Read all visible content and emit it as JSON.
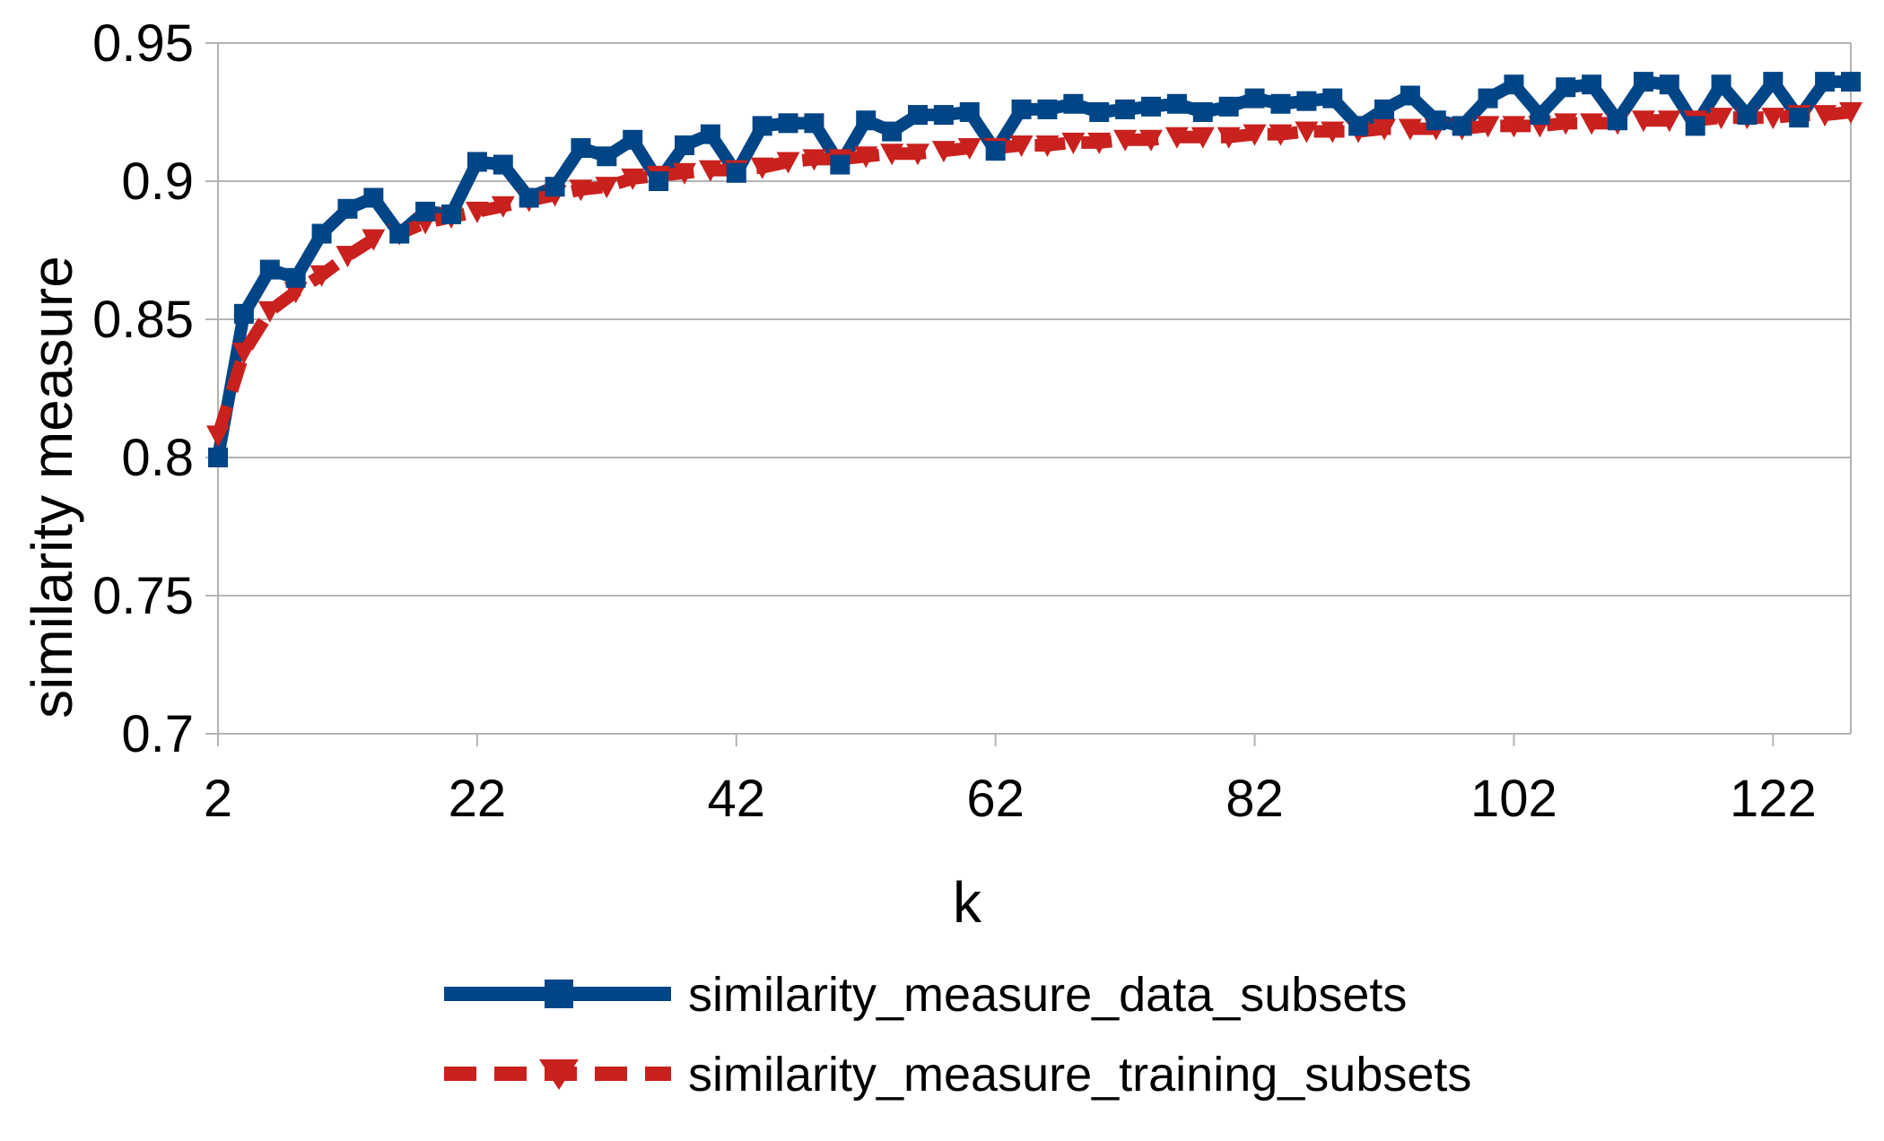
{
  "chart_data": {
    "type": "line",
    "xlabel": "k",
    "ylabel": "similarity measure",
    "xlim": [
      2,
      128
    ],
    "ylim": [
      0.7,
      0.95
    ],
    "x_ticks": [
      "2",
      "22",
      "42",
      "62",
      "82",
      "102",
      "122"
    ],
    "y_ticks": [
      "0.7",
      "0.75",
      "0.8",
      "0.85",
      "0.9",
      "0.95"
    ],
    "grid": "horizontal",
    "legend_position": "bottom",
    "x": [
      2,
      4,
      6,
      8,
      10,
      12,
      14,
      16,
      18,
      20,
      22,
      24,
      26,
      28,
      30,
      32,
      34,
      36,
      38,
      40,
      42,
      44,
      46,
      48,
      50,
      52,
      54,
      56,
      58,
      60,
      62,
      64,
      66,
      68,
      70,
      72,
      74,
      76,
      78,
      80,
      82,
      84,
      86,
      88,
      90,
      92,
      94,
      96,
      98,
      100,
      102,
      104,
      106,
      108,
      110,
      112,
      114,
      116,
      118,
      120,
      122,
      124,
      126,
      128
    ],
    "series": [
      {
        "name": "similarity_measure_data_subsets",
        "color": "#004586",
        "line_style": "solid",
        "marker": "square",
        "values": [
          0.8,
          0.852,
          0.868,
          0.865,
          0.881,
          0.89,
          0.894,
          0.881,
          0.889,
          0.888,
          0.907,
          0.906,
          0.894,
          0.898,
          0.912,
          0.909,
          0.915,
          0.9,
          0.913,
          0.917,
          0.903,
          0.92,
          0.921,
          0.921,
          0.906,
          0.922,
          0.918,
          0.924,
          0.924,
          0.925,
          0.911,
          0.926,
          0.926,
          0.928,
          0.925,
          0.926,
          0.927,
          0.928,
          0.925,
          0.927,
          0.93,
          0.928,
          0.929,
          0.93,
          0.92,
          0.926,
          0.931,
          0.922,
          0.92,
          0.93,
          0.935,
          0.924,
          0.934,
          0.935,
          0.922,
          0.936,
          0.935,
          0.92,
          0.935,
          0.924,
          0.936,
          0.923,
          0.936,
          0.936
        ]
      },
      {
        "name": "similarity_measure_training_subsets",
        "color": "#c9211e",
        "line_style": "dashed",
        "marker": "triangle-down",
        "values": [
          0.808,
          0.838,
          0.853,
          0.86,
          0.866,
          0.873,
          0.879,
          0.881,
          0.885,
          0.887,
          0.889,
          0.891,
          0.893,
          0.895,
          0.897,
          0.898,
          0.901,
          0.902,
          0.903,
          0.904,
          0.904,
          0.905,
          0.907,
          0.908,
          0.908,
          0.909,
          0.91,
          0.91,
          0.911,
          0.912,
          0.912,
          0.913,
          0.913,
          0.914,
          0.914,
          0.915,
          0.915,
          0.916,
          0.916,
          0.916,
          0.917,
          0.917,
          0.918,
          0.918,
          0.918,
          0.919,
          0.919,
          0.919,
          0.919,
          0.92,
          0.92,
          0.92,
          0.921,
          0.921,
          0.921,
          0.922,
          0.922,
          0.922,
          0.923,
          0.923,
          0.923,
          0.924,
          0.924,
          0.925
        ]
      }
    ]
  }
}
